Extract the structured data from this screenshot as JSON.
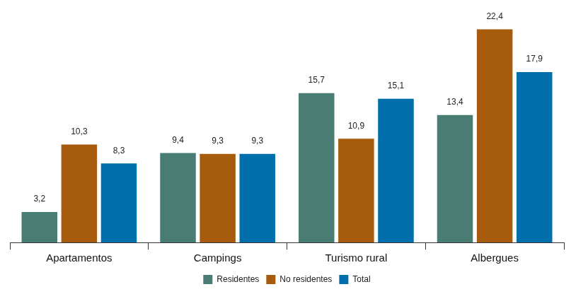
{
  "chart_data": {
    "type": "bar",
    "categories": [
      "Apartamentos",
      "Campings",
      "Turismo rural",
      "Albergues"
    ],
    "series": [
      {
        "name": "Residentes",
        "color": "#497d74",
        "values": [
          3.2,
          9.4,
          15.7,
          13.4
        ],
        "value_labels": [
          "3,2",
          "9,4",
          "15,7",
          "13,4"
        ]
      },
      {
        "name": "No residentes",
        "color": "#a65c0c",
        "values": [
          10.3,
          9.3,
          10.9,
          22.4
        ],
        "value_labels": [
          "10,3",
          "9,3",
          "10,9",
          "22,4"
        ]
      },
      {
        "name": "Total",
        "color": "#006fab",
        "values": [
          8.3,
          9.3,
          15.1,
          17.9
        ],
        "value_labels": [
          "8,3",
          "9,3",
          "15,1",
          "17,9"
        ]
      }
    ],
    "ylim": [
      0,
      24
    ],
    "grid": false,
    "legend": "bottom",
    "data_labels": true,
    "tick_labels": "x"
  }
}
